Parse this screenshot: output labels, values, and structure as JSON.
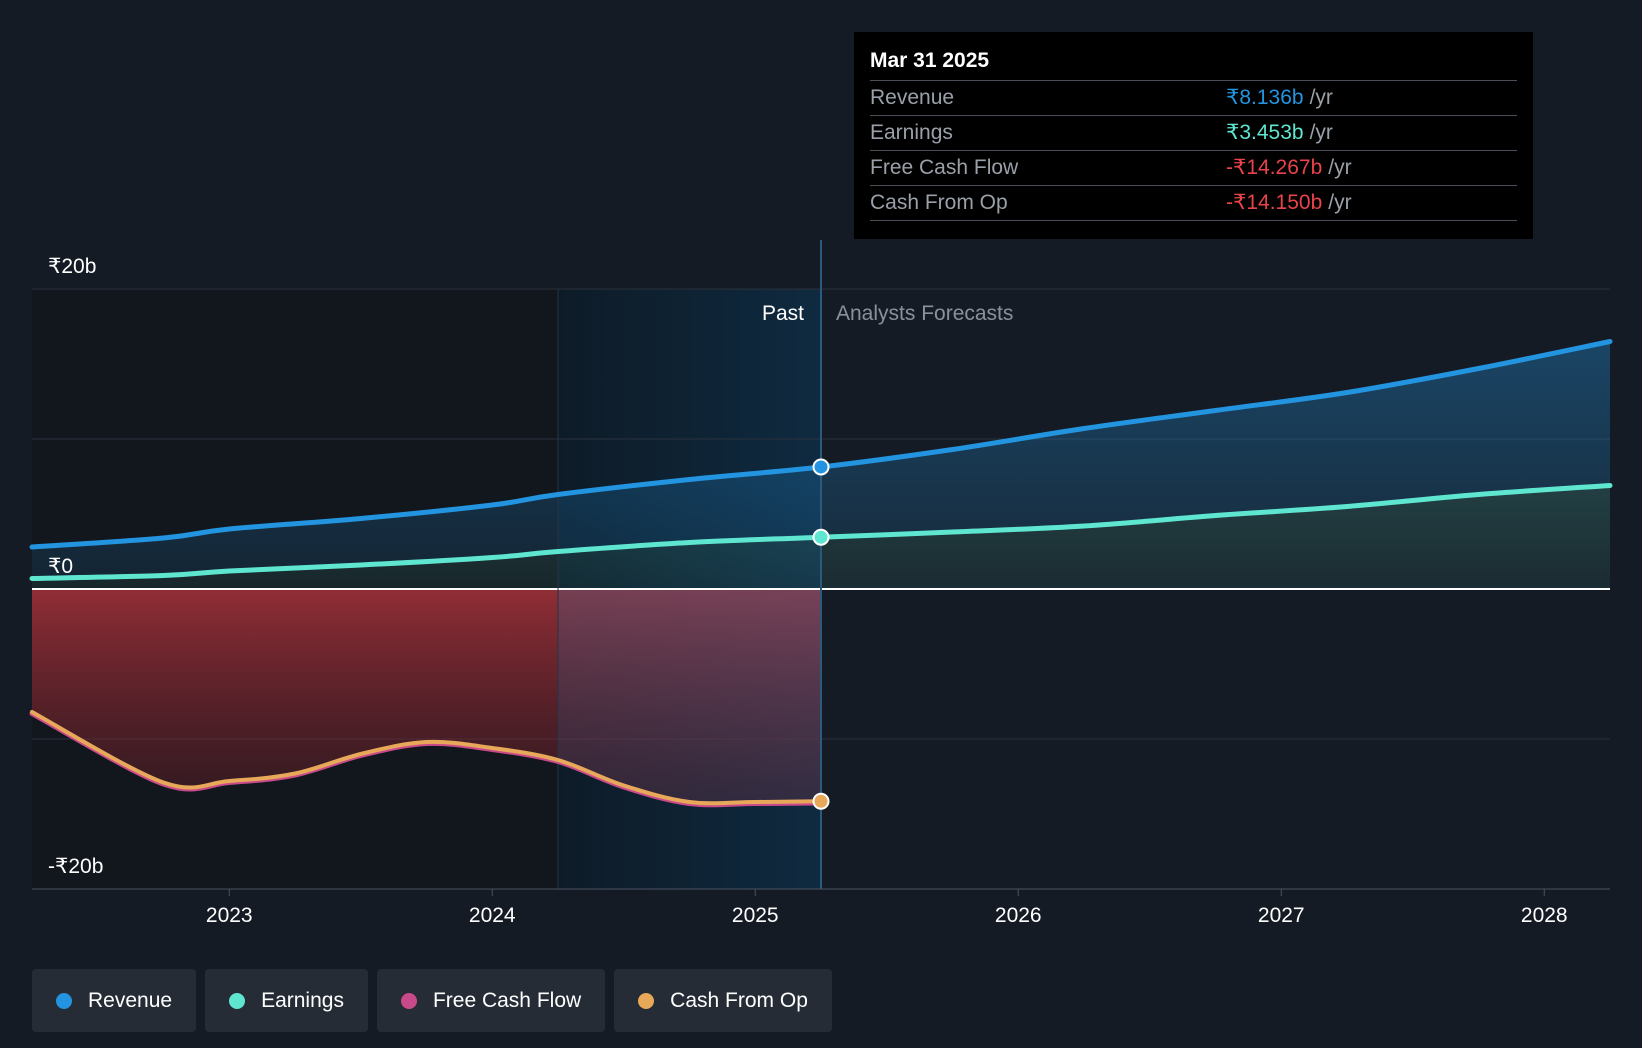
{
  "colors": {
    "background": "#151b24",
    "revenue": "#2394df",
    "earnings": "#5ee6d0",
    "free_cash_flow": "#c94a8a",
    "cash_from_op": "#e8a85a",
    "negative_value": "#e8434b",
    "past_region": "#12161d",
    "highlight_region": "#0e2233"
  },
  "chart_data": {
    "type": "line",
    "title": "",
    "xlabel": "",
    "ylabel": "",
    "currency_symbol": "₹",
    "xlim": [
      2022.25,
      2028.25
    ],
    "ylim": [
      -20,
      20
    ],
    "y_tick_labels": [
      "₹20b",
      "₹0",
      "-₹20b"
    ],
    "y_ticks": [
      20,
      0,
      -20
    ],
    "y_gridlines": [
      20,
      10,
      0,
      -10,
      -20
    ],
    "x_ticks": [
      2023,
      2024,
      2025,
      2026,
      2027,
      2028
    ],
    "x_tick_labels": [
      "2023",
      "2024",
      "2025",
      "2026",
      "2027",
      "2028"
    ],
    "past_label": "Past",
    "forecast_label": "Analysts Forecasts",
    "past_end_x": 2025.25,
    "highlight_start_x": 2024.25,
    "series": [
      {
        "name": "Revenue",
        "color_key": "revenue",
        "x": [
          2022.25,
          2022.75,
          2023.0,
          2023.5,
          2024.0,
          2024.25,
          2024.75,
          2025.25,
          2025.75,
          2026.25,
          2026.75,
          2027.25,
          2027.75,
          2028.25
        ],
        "values": [
          2.8,
          3.4,
          4.0,
          4.7,
          5.6,
          6.3,
          7.3,
          8.136,
          9.3,
          10.7,
          11.9,
          13.1,
          14.7,
          16.5
        ]
      },
      {
        "name": "Earnings",
        "color_key": "earnings",
        "x": [
          2022.25,
          2022.75,
          2023.0,
          2023.5,
          2024.0,
          2024.25,
          2024.75,
          2025.25,
          2025.75,
          2026.25,
          2026.75,
          2027.25,
          2027.75,
          2028.25
        ],
        "values": [
          0.7,
          0.9,
          1.2,
          1.6,
          2.1,
          2.5,
          3.1,
          3.453,
          3.8,
          4.2,
          4.9,
          5.5,
          6.3,
          6.9
        ]
      },
      {
        "name": "Free Cash Flow",
        "color_key": "free_cash_flow",
        "x": [
          2022.25,
          2022.75,
          2023.0,
          2023.25,
          2023.5,
          2023.75,
          2024.0,
          2024.25,
          2024.5,
          2024.75,
          2025.0,
          2025.25
        ],
        "values": [
          -8.3,
          -13.0,
          -12.9,
          -12.4,
          -11.1,
          -10.3,
          -10.7,
          -11.5,
          -13.2,
          -14.3,
          -14.3,
          -14.267
        ]
      },
      {
        "name": "Cash From Op",
        "color_key": "cash_from_op",
        "x": [
          2022.25,
          2022.75,
          2023.0,
          2023.25,
          2023.5,
          2023.75,
          2024.0,
          2024.25,
          2024.5,
          2024.75,
          2025.0,
          2025.25
        ],
        "values": [
          -8.2,
          -12.9,
          -12.8,
          -12.3,
          -11.0,
          -10.2,
          -10.6,
          -11.4,
          -13.1,
          -14.2,
          -14.2,
          -14.15
        ]
      }
    ],
    "tooltip": {
      "date": "Mar 31 2025",
      "unit": "/yr",
      "rows": [
        {
          "name": "Revenue",
          "value": "₹8.136b",
          "color_key": "revenue"
        },
        {
          "name": "Earnings",
          "value": "₹3.453b",
          "color_key": "earnings"
        },
        {
          "name": "Free Cash Flow",
          "value": "-₹14.267b",
          "color_key": "negative_value"
        },
        {
          "name": "Cash From Op",
          "value": "-₹14.150b",
          "color_key": "negative_value"
        }
      ]
    },
    "legend": [
      {
        "label": "Revenue",
        "color_key": "revenue"
      },
      {
        "label": "Earnings",
        "color_key": "earnings"
      },
      {
        "label": "Free Cash Flow",
        "color_key": "free_cash_flow"
      },
      {
        "label": "Cash From Op",
        "color_key": "cash_from_op"
      }
    ]
  }
}
